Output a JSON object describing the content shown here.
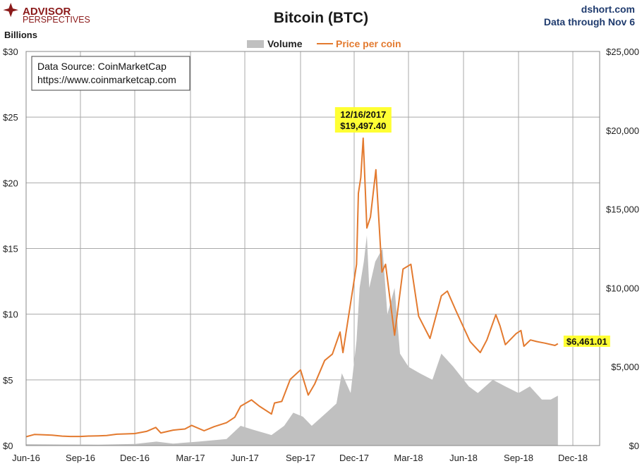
{
  "brand": {
    "line1": "ADVISOR",
    "line2": "PERSPECTIVES",
    "color": "#8b1a1a"
  },
  "source_site": "dshort.com",
  "data_through": "Data through Nov 6",
  "source_box": {
    "line1": "Data Source: CoinMarketCap",
    "line2": "https://www.coinmarketcap.com"
  },
  "chart_data": {
    "type": "line",
    "title": "Bitcoin (BTC)",
    "y_left_label": "Billions",
    "legend": [
      {
        "name": "Volume",
        "color": "#c0c0c0",
        "kind": "area"
      },
      {
        "name": "Price per coin",
        "color": "#e37a2f",
        "kind": "line"
      }
    ],
    "x_tick_labels": [
      "Jun-16",
      "Sep-16",
      "Dec-16",
      "Mar-17",
      "Jun-17",
      "Sep-17",
      "Dec-17",
      "Mar-18",
      "Jun-18",
      "Sep-18",
      "Dec-18"
    ],
    "x_tick_dates": [
      "2016-06-01",
      "2016-09-01",
      "2016-12-01",
      "2017-03-01",
      "2017-06-01",
      "2017-09-01",
      "2017-12-01",
      "2018-03-01",
      "2018-06-01",
      "2018-09-01",
      "2018-12-01"
    ],
    "y_left": {
      "min": 0,
      "max": 30,
      "ticks": [
        0,
        5,
        10,
        15,
        20,
        25,
        30
      ],
      "labels": [
        "$0",
        "$5",
        "$10",
        "$15",
        "$20",
        "$25",
        "$30"
      ]
    },
    "y_right": {
      "min": 0,
      "max": 25000,
      "ticks": [
        0,
        5000,
        10000,
        15000,
        20000,
        25000
      ],
      "labels": [
        "$0",
        "$5,000",
        "$10,000",
        "$15,000",
        "$20,000",
        "$25,000"
      ]
    },
    "grid": true,
    "legend_position": "top-center",
    "series": [
      {
        "name": "Price per coin",
        "axis": "right",
        "points": [
          [
            "2016-06-01",
            560
          ],
          [
            "2016-06-15",
            700
          ],
          [
            "2016-07-01",
            680
          ],
          [
            "2016-07-15",
            660
          ],
          [
            "2016-08-01",
            600
          ],
          [
            "2016-08-15",
            575
          ],
          [
            "2016-09-01",
            575
          ],
          [
            "2016-09-15",
            605
          ],
          [
            "2016-10-01",
            615
          ],
          [
            "2016-10-15",
            640
          ],
          [
            "2016-11-01",
            720
          ],
          [
            "2016-11-15",
            740
          ],
          [
            "2016-12-01",
            760
          ],
          [
            "2016-12-20",
            900
          ],
          [
            "2017-01-04",
            1150
          ],
          [
            "2017-01-12",
            800
          ],
          [
            "2017-02-01",
            980
          ],
          [
            "2017-02-20",
            1050
          ],
          [
            "2017-03-03",
            1280
          ],
          [
            "2017-03-24",
            940
          ],
          [
            "2017-04-10",
            1200
          ],
          [
            "2017-05-01",
            1450
          ],
          [
            "2017-05-15",
            1800
          ],
          [
            "2017-05-25",
            2500
          ],
          [
            "2017-06-12",
            2900
          ],
          [
            "2017-06-25",
            2500
          ],
          [
            "2017-07-15",
            2000
          ],
          [
            "2017-07-20",
            2700
          ],
          [
            "2017-08-01",
            2800
          ],
          [
            "2017-08-15",
            4200
          ],
          [
            "2017-09-01",
            4800
          ],
          [
            "2017-09-14",
            3200
          ],
          [
            "2017-09-25",
            3900
          ],
          [
            "2017-10-12",
            5400
          ],
          [
            "2017-10-25",
            5800
          ],
          [
            "2017-11-07",
            7200
          ],
          [
            "2017-11-12",
            5900
          ],
          [
            "2017-11-29",
            10000
          ],
          [
            "2017-12-05",
            11500
          ],
          [
            "2017-12-08",
            16000
          ],
          [
            "2017-12-12",
            17000
          ],
          [
            "2017-12-16",
            19497.4
          ],
          [
            "2017-12-22",
            13800
          ],
          [
            "2017-12-28",
            14500
          ],
          [
            "2018-01-06",
            17500
          ],
          [
            "2018-01-16",
            11000
          ],
          [
            "2018-01-22",
            11500
          ],
          [
            "2018-02-06",
            7000
          ],
          [
            "2018-02-20",
            11200
          ],
          [
            "2018-03-05",
            11500
          ],
          [
            "2018-03-18",
            8200
          ],
          [
            "2018-04-06",
            6800
          ],
          [
            "2018-04-25",
            9500
          ],
          [
            "2018-05-05",
            9800
          ],
          [
            "2018-05-20",
            8500
          ],
          [
            "2018-06-12",
            6600
          ],
          [
            "2018-06-29",
            5900
          ],
          [
            "2018-07-10",
            6700
          ],
          [
            "2018-07-25",
            8300
          ],
          [
            "2018-08-01",
            7600
          ],
          [
            "2018-08-10",
            6400
          ],
          [
            "2018-08-28",
            7100
          ],
          [
            "2018-09-05",
            7300
          ],
          [
            "2018-09-10",
            6300
          ],
          [
            "2018-09-21",
            6700
          ],
          [
            "2018-10-01",
            6600
          ],
          [
            "2018-10-15",
            6500
          ],
          [
            "2018-11-01",
            6350
          ],
          [
            "2018-11-06",
            6461.01
          ]
        ]
      },
      {
        "name": "Volume",
        "axis": "left",
        "points": [
          [
            "2016-06-01",
            0.1
          ],
          [
            "2016-08-01",
            0.08
          ],
          [
            "2016-10-01",
            0.07
          ],
          [
            "2016-12-01",
            0.12
          ],
          [
            "2017-01-05",
            0.3
          ],
          [
            "2017-02-01",
            0.15
          ],
          [
            "2017-03-15",
            0.3
          ],
          [
            "2017-05-01",
            0.5
          ],
          [
            "2017-05-25",
            1.5
          ],
          [
            "2017-06-15",
            1.2
          ],
          [
            "2017-07-15",
            0.8
          ],
          [
            "2017-08-05",
            1.5
          ],
          [
            "2017-08-20",
            2.5
          ],
          [
            "2017-09-05",
            2.2
          ],
          [
            "2017-09-20",
            1.5
          ],
          [
            "2017-10-15",
            2.5
          ],
          [
            "2017-11-01",
            3.2
          ],
          [
            "2017-11-10",
            5.5
          ],
          [
            "2017-11-25",
            4
          ],
          [
            "2017-12-05",
            8
          ],
          [
            "2017-12-10",
            12
          ],
          [
            "2017-12-17",
            14
          ],
          [
            "2017-12-22",
            16
          ],
          [
            "2017-12-26",
            12
          ],
          [
            "2018-01-05",
            14
          ],
          [
            "2018-01-17",
            15
          ],
          [
            "2018-01-25",
            10
          ],
          [
            "2018-02-06",
            12
          ],
          [
            "2018-02-15",
            7
          ],
          [
            "2018-03-01",
            6
          ],
          [
            "2018-03-20",
            5.5
          ],
          [
            "2018-04-10",
            5
          ],
          [
            "2018-04-25",
            7
          ],
          [
            "2018-05-15",
            6
          ],
          [
            "2018-06-10",
            4.5
          ],
          [
            "2018-06-25",
            4
          ],
          [
            "2018-07-20",
            5
          ],
          [
            "2018-08-10",
            4.5
          ],
          [
            "2018-09-01",
            4
          ],
          [
            "2018-09-20",
            4.5
          ],
          [
            "2018-10-10",
            3.5
          ],
          [
            "2018-10-25",
            3.5
          ],
          [
            "2018-11-06",
            3.8
          ]
        ]
      }
    ],
    "annotations": [
      {
        "lines": [
          "12/16/2017",
          "$19,497.40"
        ],
        "date": "2017-12-16",
        "value": 19497.4
      },
      {
        "lines": [
          "$6,461.01"
        ],
        "date": "2018-11-06",
        "value": 6461.01
      }
    ]
  }
}
